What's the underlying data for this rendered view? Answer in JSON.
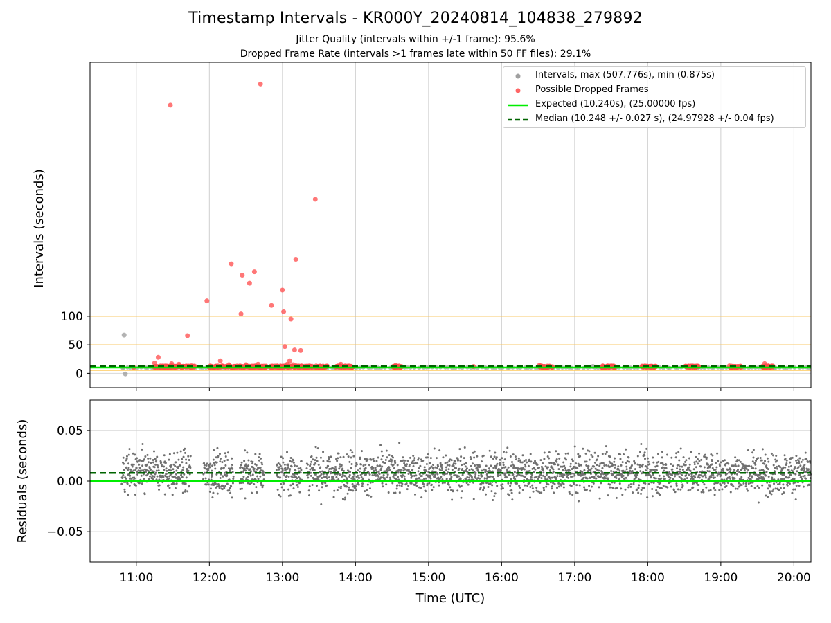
{
  "header": {
    "title": "Timestamp Intervals - KR000Y_20240814_104838_279892",
    "subtitle_1": "Jitter Quality (intervals within +/-1 frame): 95.6%",
    "subtitle_2": "Dropped Frame Rate (intervals >1 frames late within 50 FF files): 29.1%"
  },
  "chart_data": [
    {
      "type": "scatter",
      "panel": "top",
      "ylabel": "Intervals (seconds)",
      "xlabel": "",
      "xlim": [
        "10:22",
        "20:14"
      ],
      "ylim": [
        -25,
        545
      ],
      "yticks": [
        0,
        50,
        100
      ],
      "grid": "vertical",
      "threshold_lines": [
        5,
        50,
        100
      ],
      "threshold_color": "#ffc44d",
      "legend_position": "upper right",
      "legend": [
        "Intervals, max (507.776s), min (0.875s)",
        "Possible Dropped Frames",
        "Expected (10.240s), (25.00000 fps)",
        "Median (10.248 +/- 0.027 s), (24.97928 +/- 0.04 fps)"
      ],
      "series": [
        {
          "name": "Intervals, max (507.776s), min (0.875s)",
          "color": "#a0a0a0",
          "points": [
            [
              "10:50",
              67
            ],
            [
              "10:51",
              -1
            ],
            [
              "10:49",
              10
            ],
            [
              "17:15",
              12
            ]
          ]
        },
        {
          "name": "Possible Dropped Frames",
          "color": "#ff4a4a",
          "points": [
            [
              "11:28",
              470
            ],
            [
              "12:42",
              507
            ],
            [
              "13:27",
              305
            ],
            [
              "12:18",
              192
            ],
            [
              "12:37",
              178
            ],
            [
              "12:27",
              172
            ],
            [
              "12:33",
              158
            ],
            [
              "13:11",
              200
            ],
            [
              "11:58",
              127
            ],
            [
              "13:00",
              146
            ],
            [
              "12:51",
              119
            ],
            [
              "13:01",
              108
            ],
            [
              "12:26",
              104
            ],
            [
              "13:07",
              95
            ],
            [
              "11:42",
              66
            ],
            [
              "13:02",
              47
            ],
            [
              "13:15",
              40
            ],
            [
              "13:10",
              41
            ],
            [
              "11:18",
              28
            ],
            [
              "12:09",
              22
            ],
            [
              "13:06",
              22
            ],
            [
              "11:15",
              18
            ],
            [
              "11:29",
              17
            ],
            [
              "11:35",
              16
            ],
            [
              "12:16",
              15
            ],
            [
              "12:30",
              15
            ],
            [
              "12:40",
              16
            ],
            [
              "13:04",
              16
            ],
            [
              "13:09",
              15
            ],
            [
              "13:48",
              16
            ],
            [
              "14:33",
              14
            ],
            [
              "15:37",
              12
            ],
            [
              "16:31",
              14
            ],
            [
              "17:23",
              13
            ],
            [
              "19:07",
              13
            ],
            [
              "19:36",
              17
            ],
            [
              "10:58",
              10
            ]
          ],
          "dense_clusters": [
            [
              "11:15",
              "11:48"
            ],
            [
              "12:00",
              "12:47"
            ],
            [
              "12:50",
              "13:25"
            ],
            [
              "13:27",
              "13:37"
            ],
            [
              "13:44",
              "13:58"
            ],
            [
              "14:31",
              "14:38"
            ],
            [
              "16:31",
              "16:42"
            ],
            [
              "17:22",
              "17:33"
            ],
            [
              "17:55",
              "18:07"
            ],
            [
              "18:31",
              "18:42"
            ],
            [
              "19:08",
              "19:17"
            ],
            [
              "19:34",
              "19:43"
            ]
          ]
        },
        {
          "name": "Expected (10.240s), (25.00000 fps)",
          "color": "#00ee00",
          "style": "solid",
          "value": 10.24
        },
        {
          "name": "Median (10.248 +/- 0.027 s), (24.97928 +/- 0.04 fps)",
          "color": "#006400",
          "style": "dashed",
          "value": 10.248
        }
      ]
    },
    {
      "type": "scatter",
      "panel": "bottom",
      "xlabel": "Time (UTC)",
      "ylabel": "Residuals (seconds)",
      "xlim": [
        "10:22",
        "20:14"
      ],
      "ylim": [
        -0.08,
        0.08
      ],
      "xticks": [
        "11:00",
        "12:00",
        "13:00",
        "14:00",
        "15:00",
        "16:00",
        "17:00",
        "18:00",
        "19:00",
        "20:00"
      ],
      "yticks": [
        0.05,
        0.0,
        -0.05
      ],
      "ytick_labels": [
        "0.05",
        "0.00",
        "−0.05"
      ],
      "grid": "both",
      "residuals": {
        "color": "#707070",
        "center": 0.008,
        "spread_sd": 0.014,
        "start": "10:48",
        "end": "20:14",
        "gaps": [
          [
            "11:45",
            "11:55"
          ],
          [
            "12:20",
            "12:25"
          ],
          [
            "12:45",
            "12:55"
          ],
          [
            "13:16",
            "13:20"
          ]
        ]
      },
      "lines": [
        {
          "name": "Expected",
          "value": 0.0,
          "color": "#00ee00",
          "style": "solid"
        },
        {
          "name": "Median",
          "value": 0.008,
          "color": "#006400",
          "style": "dashed"
        }
      ]
    }
  ]
}
